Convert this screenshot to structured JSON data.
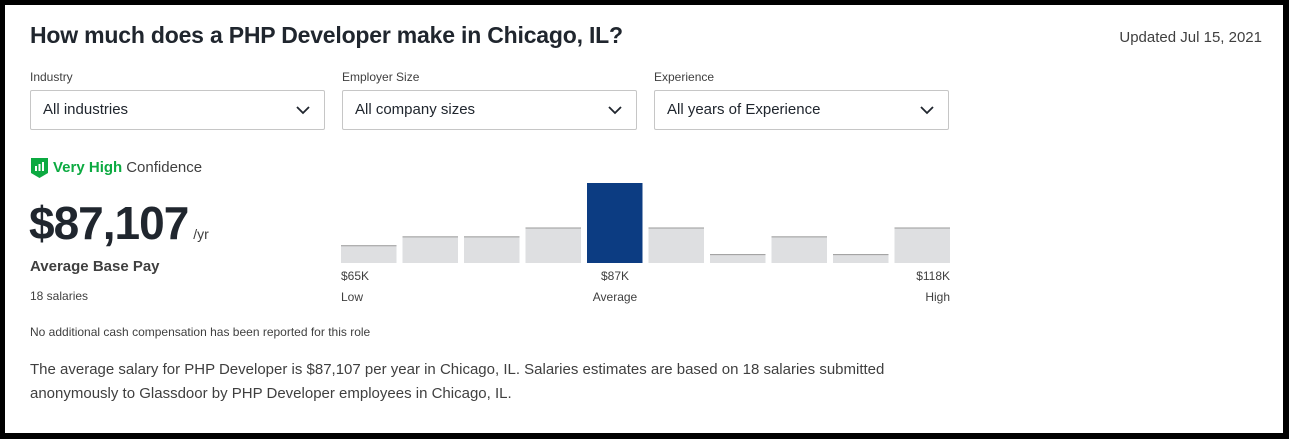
{
  "header": {
    "title": "How much does a PHP Developer make in Chicago, IL?",
    "updated": "Updated Jul 15, 2021"
  },
  "filters": [
    {
      "label": "Industry",
      "value": "All industries",
      "icon": "chevron-down-icon"
    },
    {
      "label": "Employer Size",
      "value": "All company sizes",
      "icon": "chevron-down-icon"
    },
    {
      "label": "Experience",
      "value": "All years of Experience",
      "icon": "chevron-down-icon"
    }
  ],
  "confidence": {
    "level": "Very High",
    "suffix": "Confidence",
    "icon": "shield-bars-icon",
    "color": "#0caa41"
  },
  "pay": {
    "amount": "$87,107",
    "unit": "/yr",
    "label": "Average Base Pay",
    "count": "18 salaries"
  },
  "chart_data": {
    "type": "bar",
    "values": [
      2,
      3,
      3,
      4,
      9,
      4,
      1,
      3,
      1,
      4
    ],
    "highlight_index": 4,
    "colors": {
      "bar": "#dedfe1",
      "highlight": "#0c3c82",
      "top_line": "#9b9b9b"
    },
    "ticks": [
      {
        "value": "$65K",
        "label": "Low"
      },
      {
        "value": "$87K",
        "label": "Average"
      },
      {
        "value": "$118K",
        "label": "High"
      }
    ]
  },
  "note": "No additional cash compensation has been reported for this role",
  "description": "The average salary for PHP Developer is $87,107 per year in Chicago, IL. Salaries estimates are based on 18 salaries submitted anonymously to Glassdoor by PHP Developer employees in Chicago, IL."
}
